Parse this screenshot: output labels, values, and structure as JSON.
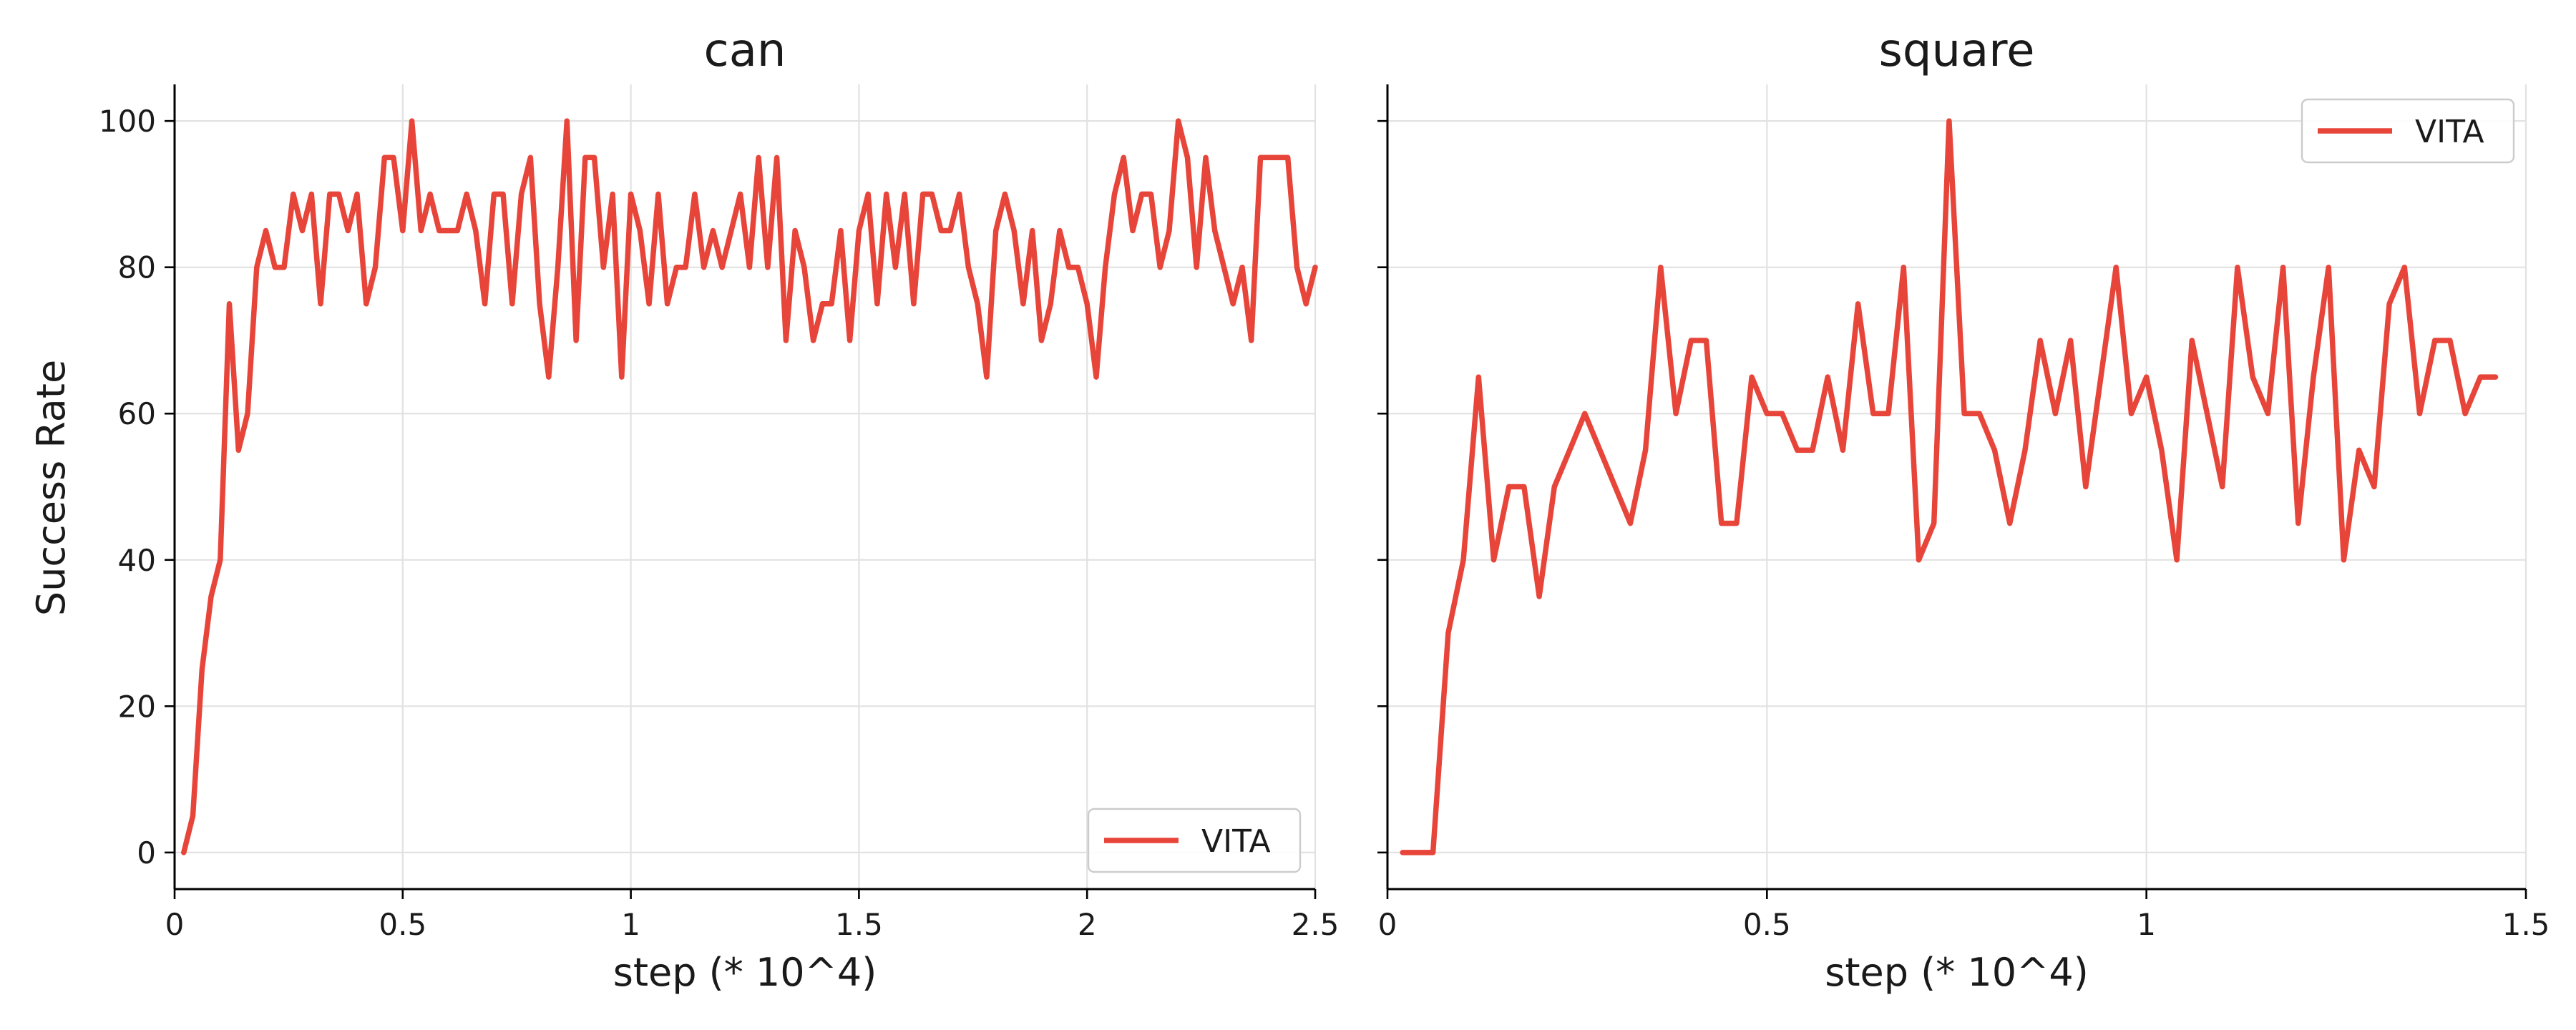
{
  "figure": {
    "ylabel": "Success Rate",
    "line_color": "#e8453a"
  },
  "chart_data": [
    {
      "type": "line",
      "title": "can",
      "xlabel": "step (* 10^4)",
      "ylabel": "Success Rate",
      "xlim": [
        0,
        2.5
      ],
      "ylim": [
        -5,
        105
      ],
      "xticks": [
        0,
        0.5,
        1,
        1.5,
        2,
        2.5
      ],
      "xtick_labels": [
        "0",
        "0.5",
        "1",
        "1.5",
        "2",
        "2.5"
      ],
      "yticks": [
        0,
        20,
        40,
        60,
        80,
        100
      ],
      "ytick_labels": [
        "0",
        "20",
        "40",
        "60",
        "80",
        "100"
      ],
      "grid": true,
      "legend": "bottom-right",
      "series": [
        {
          "name": "VITA",
          "color": "#e8453a",
          "x": [
            0.02,
            0.04,
            0.06,
            0.08,
            0.1,
            0.12,
            0.14,
            0.16,
            0.18,
            0.2,
            0.22,
            0.24,
            0.26,
            0.28,
            0.3,
            0.32,
            0.34,
            0.36,
            0.38,
            0.4,
            0.42,
            0.44,
            0.46,
            0.48,
            0.5,
            0.52,
            0.54,
            0.56,
            0.58,
            0.6,
            0.62,
            0.64,
            0.66,
            0.68,
            0.7,
            0.72,
            0.74,
            0.76,
            0.78,
            0.8,
            0.82,
            0.84,
            0.86,
            0.88,
            0.9,
            0.92,
            0.94,
            0.96,
            0.98,
            1.0,
            1.02,
            1.04,
            1.06,
            1.08,
            1.1,
            1.12,
            1.14,
            1.16,
            1.18,
            1.2,
            1.22,
            1.24,
            1.26,
            1.28,
            1.3,
            1.32,
            1.34,
            1.36,
            1.38,
            1.4,
            1.42,
            1.44,
            1.46,
            1.48,
            1.5,
            1.52,
            1.54,
            1.56,
            1.58,
            1.6,
            1.62,
            1.64,
            1.66,
            1.68,
            1.7,
            1.72,
            1.74,
            1.76,
            1.78,
            1.8,
            1.82,
            1.84,
            1.86,
            1.88,
            1.9,
            1.92,
            1.94,
            1.96,
            1.98,
            2.0,
            2.02,
            2.04,
            2.06,
            2.08,
            2.1,
            2.12,
            2.14,
            2.16,
            2.18,
            2.2,
            2.22,
            2.24,
            2.26,
            2.28,
            2.3,
            2.32,
            2.34,
            2.36,
            2.38,
            2.4,
            2.42,
            2.44,
            2.46,
            2.48,
            2.5
          ],
          "values": [
            0,
            5,
            25,
            35,
            40,
            75,
            55,
            60,
            80,
            85,
            80,
            80,
            90,
            85,
            90,
            75,
            90,
            90,
            85,
            90,
            75,
            80,
            95,
            95,
            85,
            100,
            85,
            90,
            85,
            85,
            85,
            90,
            85,
            75,
            90,
            90,
            75,
            90,
            95,
            75,
            65,
            80,
            100,
            70,
            95,
            95,
            80,
            90,
            65,
            90,
            85,
            75,
            90,
            75,
            80,
            80,
            90,
            80,
            85,
            80,
            85,
            90,
            80,
            95,
            80,
            95,
            70,
            85,
            80,
            70,
            75,
            75,
            85,
            70,
            85,
            90,
            75,
            90,
            80,
            90,
            75,
            90,
            90,
            85,
            85,
            90,
            80,
            75,
            65,
            85,
            90,
            85,
            75,
            85,
            70,
            75,
            85,
            80,
            80,
            75,
            65,
            80,
            90,
            95,
            85,
            90,
            90,
            80,
            85,
            100,
            95,
            80,
            95,
            85,
            80,
            75,
            80,
            70,
            95,
            95,
            95,
            95,
            80,
            75,
            80
          ]
        }
      ]
    },
    {
      "type": "line",
      "title": "square",
      "xlabel": "step (* 10^4)",
      "ylabel": "",
      "xlim": [
        0,
        1.5
      ],
      "ylim": [
        -5,
        105
      ],
      "xticks": [
        0,
        0.5,
        1,
        1.5
      ],
      "xtick_labels": [
        "0",
        "0.5",
        "1",
        "1.5"
      ],
      "yticks": [
        0,
        20,
        40,
        60,
        80,
        100
      ],
      "ytick_labels": [],
      "grid": true,
      "legend": "top-right",
      "series": [
        {
          "name": "VITA",
          "color": "#e8453a",
          "x": [
            0.02,
            0.04,
            0.06,
            0.08,
            0.1,
            0.12,
            0.14,
            0.16,
            0.18,
            0.2,
            0.22,
            0.24,
            0.26,
            0.28,
            0.3,
            0.32,
            0.34,
            0.36,
            0.38,
            0.4,
            0.42,
            0.44,
            0.46,
            0.48,
            0.5,
            0.52,
            0.54,
            0.56,
            0.58,
            0.6,
            0.62,
            0.64,
            0.66,
            0.68,
            0.7,
            0.72,
            0.74,
            0.76,
            0.78,
            0.8,
            0.82,
            0.84,
            0.86,
            0.88,
            0.9,
            0.92,
            0.94,
            0.96,
            0.98,
            1.0,
            1.02,
            1.04,
            1.06,
            1.08,
            1.1,
            1.12,
            1.14,
            1.16,
            1.18,
            1.2,
            1.22,
            1.24,
            1.26,
            1.28,
            1.3,
            1.32,
            1.34,
            1.36,
            1.38,
            1.4,
            1.42,
            1.44,
            1.46
          ],
          "values": [
            0,
            0,
            0,
            30,
            40,
            65,
            40,
            50,
            50,
            35,
            50,
            55,
            60,
            55,
            50,
            45,
            55,
            80,
            60,
            70,
            70,
            45,
            45,
            65,
            60,
            60,
            55,
            55,
            65,
            55,
            75,
            60,
            60,
            80,
            40,
            45,
            100,
            60,
            60,
            55,
            45,
            55,
            70,
            60,
            70,
            50,
            65,
            80,
            60,
            65,
            55,
            40,
            70,
            60,
            50,
            80,
            65,
            60,
            80,
            45,
            65,
            80,
            40,
            55,
            50,
            75,
            80,
            60,
            70,
            70,
            60,
            65,
            65
          ]
        }
      ]
    }
  ]
}
